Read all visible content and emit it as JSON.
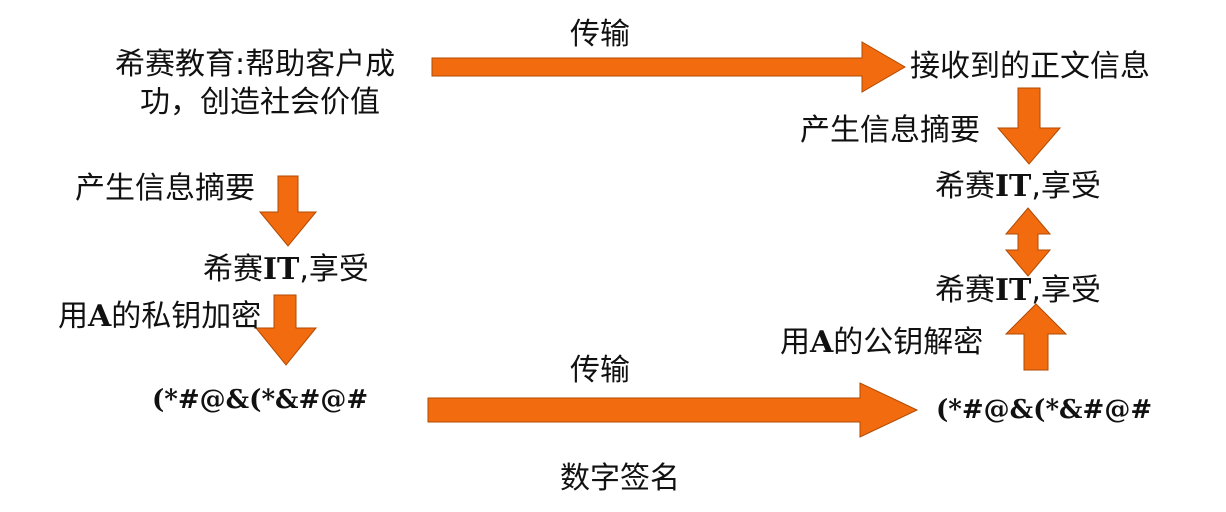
{
  "colors": {
    "arrow_fill": "#F26C0F",
    "arrow_stroke": "#B04A00",
    "text": "#111111",
    "background": "#ffffff"
  },
  "left": {
    "message_line1": "希赛教育:帮助客户成",
    "message_line2": "功，创造社会价值",
    "digest_step_label": "产生信息摘要",
    "digest": {
      "prefix": "希赛",
      "bold": "IT",
      "suffix": ",享受"
    },
    "encrypt_label": {
      "prefix": "用",
      "bold": "A",
      "suffix": "的私钥加密"
    },
    "cipher": "(*#@&(*&#@#"
  },
  "right": {
    "received_text": "接收到的正文信息",
    "digest_step_label": "产生信息摘要",
    "digest_top": {
      "prefix": "希赛",
      "bold": "IT",
      "suffix": ",享受"
    },
    "digest_bottom": {
      "prefix": "希赛",
      "bold": "IT",
      "suffix": ",享受"
    },
    "decrypt_label": {
      "prefix": "用",
      "bold": "A",
      "suffix": "的公钥解密"
    },
    "cipher": "(*#@&(*&#@#"
  },
  "transmit_top_label": "传输",
  "transmit_bottom_label": "传输",
  "caption": "数字签名"
}
